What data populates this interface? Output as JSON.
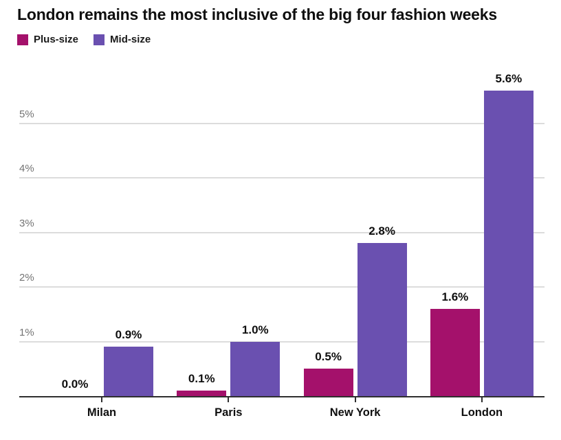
{
  "title": "London remains the most inclusive of the big four fashion weeks",
  "legend": [
    {
      "label": "Plus-size",
      "color": "#a4116b"
    },
    {
      "label": "Mid-size",
      "color": "#6a50b0"
    }
  ],
  "chart_data": {
    "type": "bar",
    "grouped": true,
    "title": "London remains the most inclusive of the big four fashion weeks",
    "categories": [
      "Milan",
      "Paris",
      "New York",
      "London"
    ],
    "series": [
      {
        "name": "Plus-size",
        "color": "#a4116b",
        "values": [
          0.0,
          0.1,
          0.5,
          1.6
        ],
        "data_labels": [
          "0.0%",
          "0.1%",
          "0.5%",
          "1.6%"
        ]
      },
      {
        "name": "Mid-size",
        "color": "#6a50b0",
        "values": [
          0.9,
          1.0,
          2.8,
          5.6
        ],
        "data_labels": [
          "0.9%",
          "1.0%",
          "2.8%",
          "5.6%"
        ]
      }
    ],
    "xlabel": "",
    "ylabel": "",
    "y_axis": {
      "tick_labels": [
        "1%",
        "2%",
        "3%",
        "4%",
        "5%"
      ],
      "tick_values": [
        1,
        2,
        3,
        4,
        5
      ],
      "min": 0,
      "max": 5.6,
      "grid": true
    },
    "legend_position": "top-left",
    "colors": {
      "grid": "#dcdcdc",
      "axis": "#2e2e2e",
      "y_tick_text": "#737373",
      "text": "#0f0f0f",
      "background": "#ffffff"
    }
  }
}
